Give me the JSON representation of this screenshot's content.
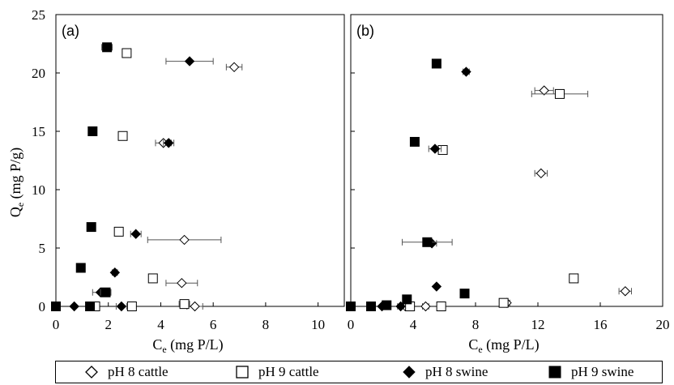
{
  "y_axis_label": {
    "main": "Q",
    "sub": "e",
    "unit": " (mg P/g)"
  },
  "chart_data": [
    {
      "type": "scatter",
      "panel": "(a)",
      "title": "",
      "xlabel": {
        "main": "C",
        "sub": "e",
        "unit": " (mg P/L)"
      },
      "ylabel": "Q_e (mg P/g)",
      "xlim": [
        0,
        11
      ],
      "ylim": [
        0,
        25
      ],
      "xticks": [
        0,
        2,
        4,
        6,
        8,
        10
      ],
      "yticks": [
        0,
        5,
        10,
        15,
        20,
        25
      ],
      "grid": false,
      "series": [
        {
          "name": "pH 8 cattle",
          "marker": "open-diamond",
          "points": [
            [
              6.8,
              20.5,
              0.3
            ],
            [
              4.1,
              14.0,
              0.3
            ],
            [
              4.9,
              5.7,
              1.4
            ],
            [
              4.8,
              2.0,
              0.6
            ],
            [
              5.3,
              0.0,
              0.3
            ]
          ]
        },
        {
          "name": "pH 9 cattle",
          "marker": "open-square",
          "points": [
            [
              2.7,
              21.7,
              0.15
            ],
            [
              2.55,
              14.6,
              0.1
            ],
            [
              2.4,
              6.4,
              0.1
            ],
            [
              3.7,
              2.4,
              0.1
            ],
            [
              4.9,
              0.2,
              0.2
            ],
            [
              2.9,
              0.0,
              0.1
            ],
            [
              1.5,
              0.0,
              0.05
            ]
          ]
        },
        {
          "name": "pH 8 swine",
          "marker": "filled-diamond",
          "points": [
            [
              5.1,
              21.0,
              0.9
            ],
            [
              4.3,
              14.0,
              0.2
            ],
            [
              3.05,
              6.2,
              0.2
            ],
            [
              2.25,
              2.9,
              0.1
            ],
            [
              1.7,
              1.2,
              0.3
            ],
            [
              2.5,
              0.0,
              0.2
            ],
            [
              0.7,
              0.0,
              0.05
            ]
          ]
        },
        {
          "name": "pH 9 swine",
          "marker": "filled-square",
          "points": [
            [
              1.95,
              22.2,
              0.2
            ],
            [
              1.4,
              15.0,
              0.05
            ],
            [
              1.35,
              6.8,
              0.05
            ],
            [
              0.95,
              3.3,
              0.05
            ],
            [
              1.9,
              1.2,
              0.2
            ],
            [
              1.3,
              0.0,
              0.05
            ],
            [
              0.0,
              0.0,
              0.0
            ]
          ]
        }
      ]
    },
    {
      "type": "scatter",
      "panel": "(b)",
      "title": "",
      "xlabel": {
        "main": "C",
        "sub": "e",
        "unit": " (mg P/L)"
      },
      "ylabel": "Q_e (mg P/g)",
      "xlim": [
        0,
        20
      ],
      "ylim": [
        0,
        25
      ],
      "xticks": [
        0,
        4,
        8,
        12,
        16,
        20
      ],
      "yticks": [
        0,
        5,
        10,
        15,
        20,
        25
      ],
      "grid": false,
      "series": [
        {
          "name": "pH 8 cattle",
          "marker": "open-diamond",
          "points": [
            [
              12.4,
              18.5,
              0.6
            ],
            [
              12.2,
              11.4,
              0.4
            ],
            [
              17.6,
              1.3,
              0.4
            ],
            [
              10.0,
              0.3,
              0.2
            ],
            [
              4.8,
              0.0,
              0.2
            ],
            [
              3.5,
              0.0,
              0.2
            ]
          ]
        },
        {
          "name": "pH 9 cattle",
          "marker": "open-square",
          "points": [
            [
              13.4,
              18.2,
              1.8
            ],
            [
              5.9,
              13.4,
              0.2
            ],
            [
              14.3,
              2.4,
              0.1
            ],
            [
              9.8,
              0.3,
              0.1
            ],
            [
              5.8,
              0.0,
              0.1
            ],
            [
              3.8,
              0.0,
              0.1
            ]
          ]
        },
        {
          "name": "pH 8 swine",
          "marker": "filled-diamond",
          "points": [
            [
              7.4,
              20.1,
              0.2
            ],
            [
              5.4,
              13.5,
              0.4
            ],
            [
              5.2,
              5.4,
              0.3
            ],
            [
              5.5,
              1.7,
              0.1
            ],
            [
              3.2,
              0.0,
              0.2
            ],
            [
              2.0,
              0.0,
              0.1
            ]
          ]
        },
        {
          "name": "pH 9 swine",
          "marker": "filled-square",
          "points": [
            [
              5.5,
              20.8,
              0.1
            ],
            [
              4.1,
              14.1,
              0.1
            ],
            [
              4.9,
              5.5,
              1.6
            ],
            [
              7.3,
              1.1,
              0.1
            ],
            [
              3.6,
              0.6,
              0.1
            ],
            [
              2.3,
              0.1,
              0.1
            ],
            [
              1.3,
              0.0,
              0.1
            ],
            [
              0.0,
              0.0,
              0.0
            ]
          ]
        }
      ]
    }
  ],
  "legend": {
    "items": [
      {
        "label": "pH 8 cattle",
        "marker": "open-diamond"
      },
      {
        "label": "pH 9 cattle",
        "marker": "open-square"
      },
      {
        "label": "pH 8 swine",
        "marker": "filled-diamond"
      },
      {
        "label": "pH 9 swine",
        "marker": "filled-square"
      }
    ]
  },
  "colors": {
    "axis": "#000000",
    "marker_fill_filled": "#000000",
    "marker_fill_open": "#ffffff",
    "errorbar": "#555555"
  }
}
